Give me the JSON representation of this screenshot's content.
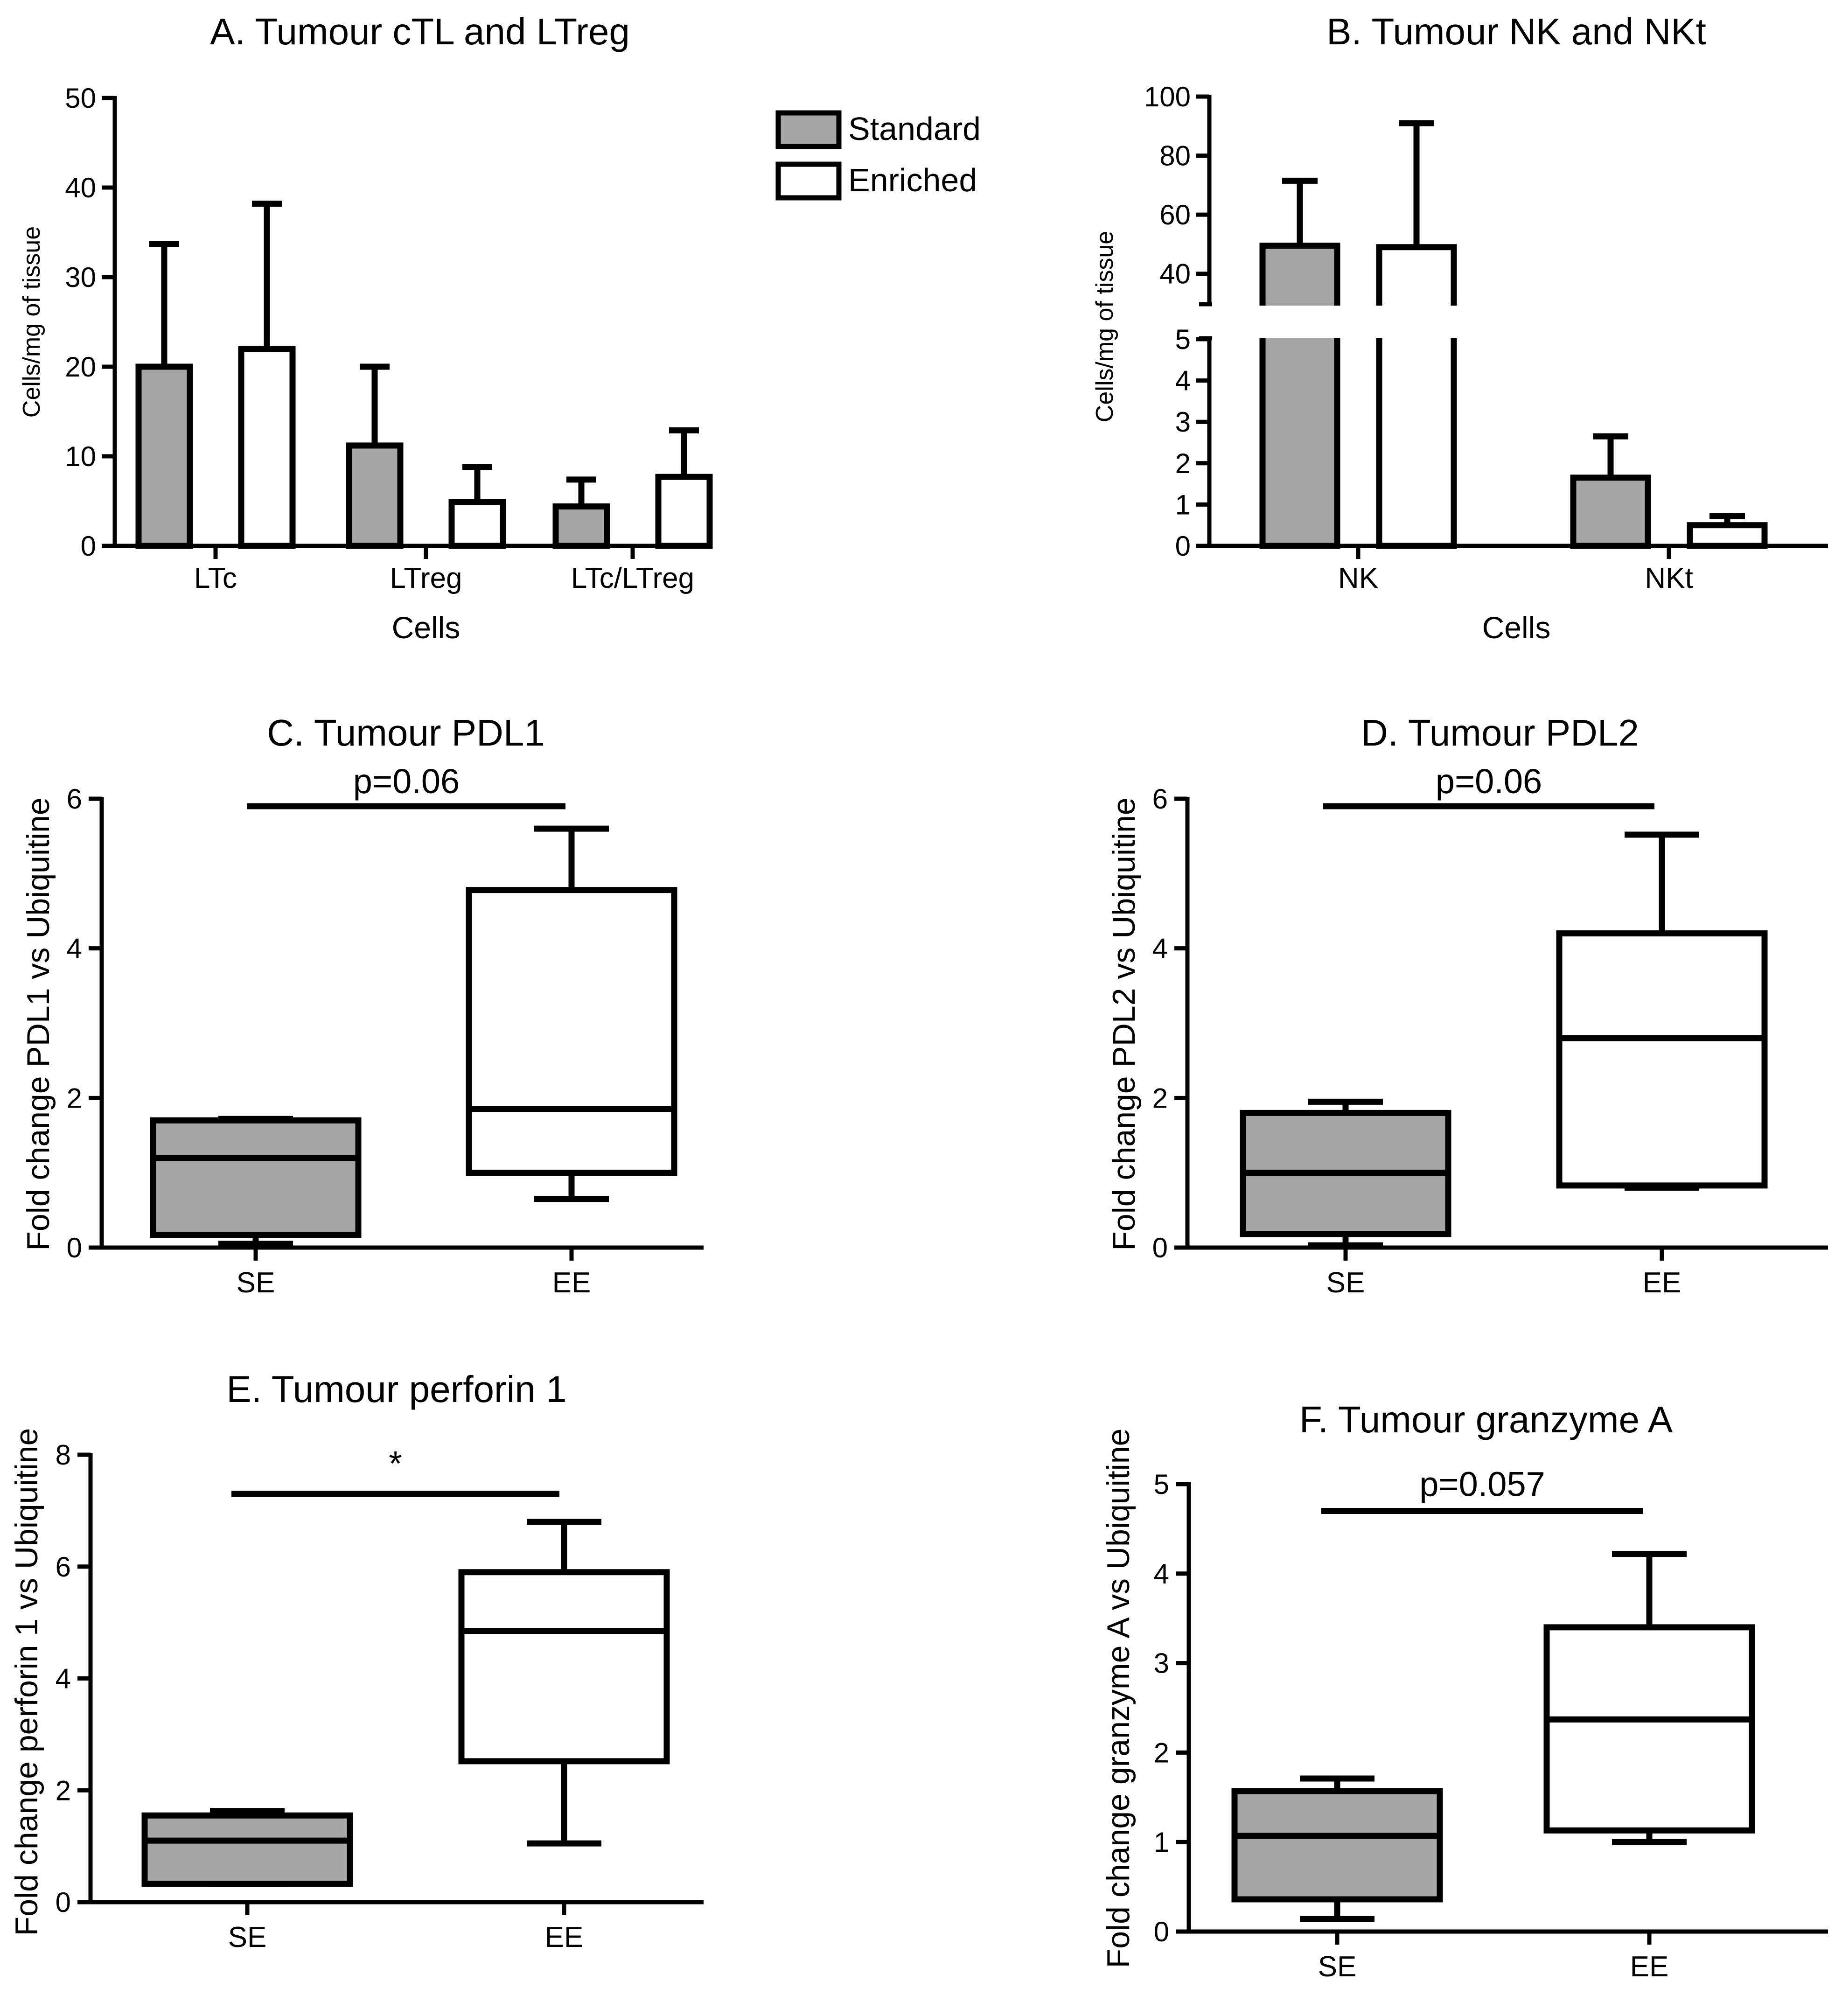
{
  "legend": {
    "entries": [
      {
        "label": "Standard",
        "color": "#a6a6a6"
      },
      {
        "label": "Enriched",
        "color": "#ffffff"
      }
    ]
  },
  "chart_data": [
    {
      "panel": "A",
      "type": "bar",
      "title": "A. Tumour cTL and LTreg",
      "xlabel": "Cells",
      "ylabel": "Cells/mg of tissue",
      "ylim": [
        0,
        50
      ],
      "yticks": [
        "0",
        "10",
        "20",
        "30",
        "40",
        "50"
      ],
      "categories": [
        "LTc",
        "LTreg",
        "LTc/LTreg"
      ],
      "series": [
        {
          "name": "Standard",
          "color": "#a6a6a6",
          "values": [
            20,
            11.2,
            4.4
          ],
          "errors": [
            13.7,
            8.8,
            3.0
          ]
        },
        {
          "name": "Enriched",
          "color": "#ffffff",
          "values": [
            22,
            4.9,
            7.7
          ],
          "errors": [
            16.2,
            3.9,
            5.2
          ]
        }
      ]
    },
    {
      "panel": "B",
      "type": "bar",
      "title": "B. Tumour NK and NKt",
      "xlabel": "Cells",
      "ylabel": "Cells/mg of tissue",
      "broken_axis": {
        "lower": [
          0,
          5
        ],
        "upper": [
          30,
          100
        ]
      },
      "yticks_lower": [
        "0",
        "1",
        "2",
        "3",
        "4",
        "5"
      ],
      "yticks_upper": [
        "40",
        "60",
        "80",
        "100"
      ],
      "categories": [
        "NK",
        "NKt"
      ],
      "series": [
        {
          "name": "Standard",
          "color": "#a6a6a6",
          "values": [
            49.5,
            1.65
          ],
          "errors": [
            22,
            1.0
          ]
        },
        {
          "name": "Enriched",
          "color": "#ffffff",
          "values": [
            49,
            0.5
          ],
          "errors": [
            42,
            0.22
          ]
        }
      ]
    },
    {
      "panel": "C",
      "type": "box",
      "title": "C. Tumour PDL1",
      "ylabel": "Fold change PDL1 vs Ubiquitine",
      "ylim": [
        0,
        6
      ],
      "yticks": [
        "0",
        "2",
        "4",
        "6"
      ],
      "categories": [
        "SE",
        "EE"
      ],
      "boxes": [
        {
          "name": "SE",
          "color": "#a6a6a6",
          "min": 0.05,
          "q1": 0.17,
          "median": 1.2,
          "q3": 1.7,
          "max": 1.72
        },
        {
          "name": "EE",
          "color": "#ffffff",
          "min": 0.65,
          "q1": 1.0,
          "median": 1.85,
          "q3": 4.78,
          "max": 5.6
        }
      ],
      "annotation": {
        "text": "p=0.06",
        "level": 5.9
      }
    },
    {
      "panel": "D",
      "type": "box",
      "title": "D. Tumour PDL2",
      "ylabel": "Fold change PDL2 vs Ubiquitine",
      "ylim": [
        0,
        6
      ],
      "yticks": [
        "0",
        "2",
        "4",
        "6"
      ],
      "categories": [
        "SE",
        "EE"
      ],
      "boxes": [
        {
          "name": "SE",
          "color": "#a6a6a6",
          "min": 0.03,
          "q1": 0.18,
          "median": 1.0,
          "q3": 1.8,
          "max": 1.95
        },
        {
          "name": "EE",
          "color": "#ffffff",
          "min": 0.8,
          "q1": 0.83,
          "median": 2.8,
          "q3": 4.2,
          "max": 5.52
        }
      ],
      "annotation": {
        "text": "p=0.06",
        "level": 5.9
      }
    },
    {
      "panel": "E",
      "type": "box",
      "title": "E. Tumour perforin 1",
      "ylabel": "Fold change perforin 1 vs Ubiquitine",
      "ylim": [
        0,
        8
      ],
      "yticks": [
        "0",
        "2",
        "4",
        "6",
        "8"
      ],
      "categories": [
        "SE",
        "EE"
      ],
      "boxes": [
        {
          "name": "SE",
          "color": "#a6a6a6",
          "min": 0.33,
          "q1": 0.33,
          "median": 1.1,
          "q3": 1.55,
          "max": 1.63
        },
        {
          "name": "EE",
          "color": "#ffffff",
          "min": 1.05,
          "q1": 2.52,
          "median": 4.85,
          "q3": 5.9,
          "max": 6.8
        }
      ],
      "annotation": {
        "text": "*",
        "level": 7.3
      }
    },
    {
      "panel": "F",
      "type": "box",
      "title": "F. Tumour granzyme A",
      "ylabel": "Fold change granzyme A vs Ubiquitine",
      "ylim": [
        0,
        5
      ],
      "yticks": [
        "0",
        "1",
        "2",
        "3",
        "4",
        "5"
      ],
      "categories": [
        "SE",
        "EE"
      ],
      "boxes": [
        {
          "name": "SE",
          "color": "#a6a6a6",
          "min": 0.14,
          "q1": 0.36,
          "median": 1.07,
          "q3": 1.57,
          "max": 1.71
        },
        {
          "name": "EE",
          "color": "#ffffff",
          "min": 1.0,
          "q1": 1.13,
          "median": 2.37,
          "q3": 3.4,
          "max": 4.22
        }
      ],
      "annotation": {
        "text": "p=0.057",
        "level": 4.7
      }
    }
  ]
}
